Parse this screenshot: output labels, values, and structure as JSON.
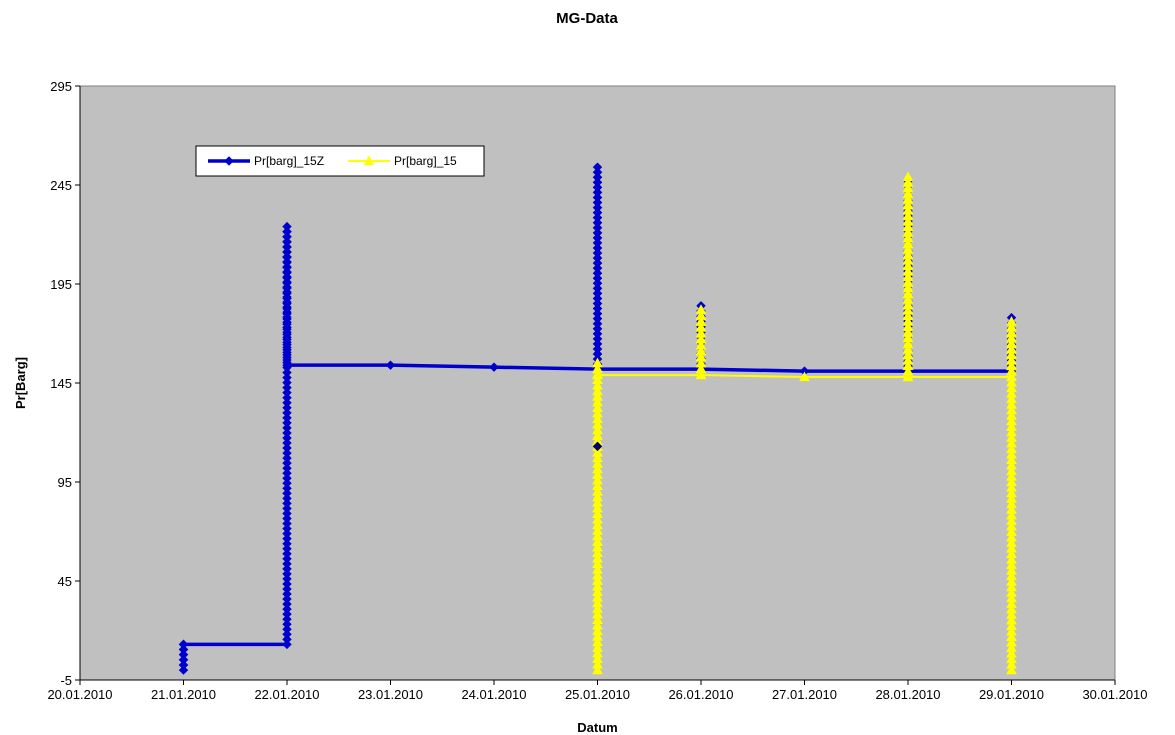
{
  "chart_data": {
    "type": "line",
    "title": "MG-Data",
    "xlabel": "Datum",
    "ylabel": "Pr[Barg]",
    "ylim": [
      -5,
      295
    ],
    "xlim": [
      "20.01.2010",
      "30.01.2010"
    ],
    "y_ticks": [
      "-5",
      "45",
      "95",
      "145",
      "195",
      "245",
      "295"
    ],
    "x_ticks": [
      "20.01.2010",
      "21.01.2010",
      "22.01.2010",
      "23.01.2010",
      "24.01.2010",
      "25.01.2010",
      "26.01.2010",
      "27.01.2010",
      "28.01.2010",
      "29.01.2010",
      "30.01.2010"
    ],
    "plot_background": "#c0c0c0",
    "grid": false,
    "legend_position": "top-left",
    "series": [
      {
        "name": "Pr[barg]_15Z",
        "color": "#0000cc",
        "marker": "diamond",
        "points": [
          {
            "x": "21.01.2010",
            "y": 13
          },
          {
            "x": "21.01.2010",
            "y": 0
          },
          {
            "x": "21.01.2010",
            "y": 13
          },
          {
            "x": "22.01.2010",
            "y": 13
          },
          {
            "x": "22.01.2010",
            "y": 224
          },
          {
            "x": "22.01.2010",
            "y": 154
          },
          {
            "x": "23.01.2010",
            "y": 154
          },
          {
            "x": "24.01.2010",
            "y": 153
          },
          {
            "x": "25.01.2010",
            "y": 152
          },
          {
            "x": "25.01.2010",
            "y": 254
          },
          {
            "x": "25.01.2010",
            "y": 152
          },
          {
            "x": "26.01.2010",
            "y": 152
          },
          {
            "x": "26.01.2010",
            "y": 184
          },
          {
            "x": "26.01.2010",
            "y": 152
          },
          {
            "x": "27.01.2010",
            "y": 151
          },
          {
            "x": "28.01.2010",
            "y": 151
          },
          {
            "x": "28.01.2010",
            "y": 247
          },
          {
            "x": "28.01.2010",
            "y": 151
          },
          {
            "x": "29.01.2010",
            "y": 151
          },
          {
            "x": "29.01.2010",
            "y": 178
          }
        ]
      },
      {
        "name": "Pr[barg]_15",
        "color": "#ffff00",
        "marker": "triangle",
        "points": [
          {
            "x": "25.01.2010",
            "y": 0
          },
          {
            "x": "25.01.2010",
            "y": 155
          },
          {
            "x": "25.01.2010",
            "y": 149
          },
          {
            "x": "26.01.2010",
            "y": 149
          },
          {
            "x": "26.01.2010",
            "y": 182
          },
          {
            "x": "26.01.2010",
            "y": 149
          },
          {
            "x": "27.01.2010",
            "y": 148
          },
          {
            "x": "28.01.2010",
            "y": 148
          },
          {
            "x": "28.01.2010",
            "y": 249
          },
          {
            "x": "28.01.2010",
            "y": 148
          },
          {
            "x": "29.01.2010",
            "y": 148
          },
          {
            "x": "29.01.2010",
            "y": 176
          },
          {
            "x": "29.01.2010",
            "y": 0
          }
        ]
      }
    ],
    "outlier_point": {
      "x": "25.01.2010",
      "y": 113,
      "color": "#000066",
      "marker": "diamond"
    }
  }
}
